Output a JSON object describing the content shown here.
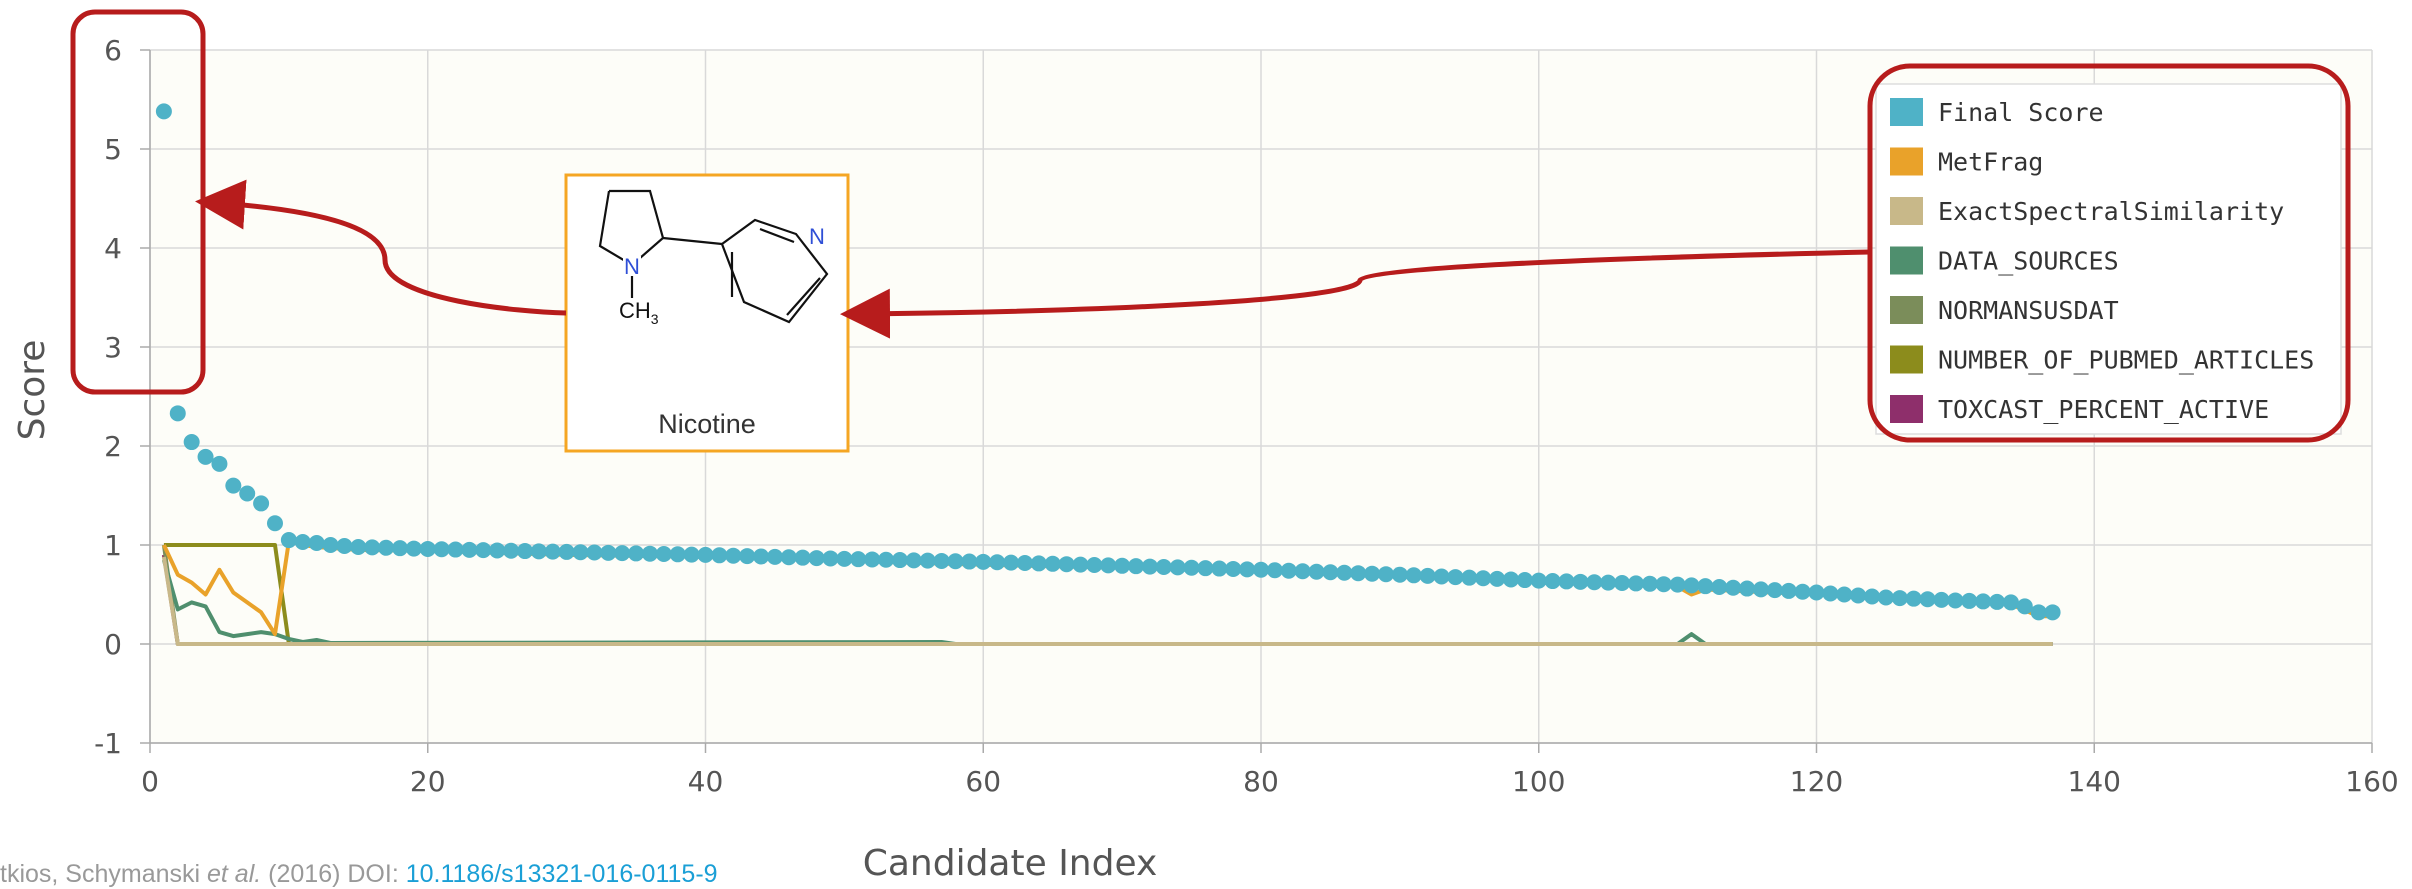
{
  "chart_data": {
    "type": "line",
    "title": "",
    "xlabel": "Candidate Index",
    "ylabel": "Score",
    "xlim": [
      0,
      160
    ],
    "ylim": [
      -1,
      6
    ],
    "x_ticks": [
      "0",
      "20",
      "40",
      "60",
      "80",
      "100",
      "120",
      "140",
      "160"
    ],
    "y_ticks": [
      "-1",
      "0",
      "1",
      "2",
      "3",
      "4",
      "5",
      "6"
    ],
    "grid": true,
    "legend_position": "top-right",
    "series": [
      {
        "name": "Final Score",
        "color": "#4fb2c7",
        "style": "markers",
        "points": [
          [
            1,
            5.38
          ],
          [
            2,
            2.33
          ],
          [
            3,
            2.04
          ],
          [
            4,
            1.89
          ],
          [
            5,
            1.82
          ],
          [
            6,
            1.6
          ],
          [
            7,
            1.52
          ],
          [
            8,
            1.42
          ],
          [
            9,
            1.22
          ],
          [
            10,
            1.05
          ],
          [
            11,
            1.03
          ],
          [
            12,
            1.02
          ],
          [
            13,
            1.0
          ],
          [
            14,
            0.99
          ],
          [
            15,
            0.98
          ],
          [
            20,
            0.96
          ],
          [
            30,
            0.93
          ],
          [
            40,
            0.9
          ],
          [
            50,
            0.86
          ],
          [
            60,
            0.83
          ],
          [
            70,
            0.79
          ],
          [
            80,
            0.75
          ],
          [
            90,
            0.7
          ],
          [
            100,
            0.64
          ],
          [
            110,
            0.6
          ],
          [
            115,
            0.56
          ],
          [
            120,
            0.52
          ],
          [
            125,
            0.47
          ],
          [
            130,
            0.44
          ],
          [
            134,
            0.42
          ],
          [
            135,
            0.38
          ],
          [
            136,
            0.32
          ],
          [
            137,
            0.32
          ]
        ]
      },
      {
        "name": "MetFrag",
        "color": "#e9a22a",
        "style": "line",
        "points": [
          [
            1,
            1.0
          ],
          [
            2,
            0.7
          ],
          [
            3,
            0.62
          ],
          [
            4,
            0.5
          ],
          [
            5,
            0.75
          ],
          [
            6,
            0.52
          ],
          [
            7,
            0.42
          ],
          [
            8,
            0.32
          ],
          [
            9,
            0.1
          ],
          [
            10,
            1.04
          ],
          [
            11,
            1.0
          ],
          [
            12,
            0.98
          ],
          [
            15,
            0.95
          ],
          [
            20,
            0.94
          ],
          [
            30,
            0.9
          ],
          [
            40,
            0.88
          ],
          [
            50,
            0.84
          ],
          [
            60,
            0.8
          ],
          [
            70,
            0.77
          ],
          [
            80,
            0.73
          ],
          [
            90,
            0.68
          ],
          [
            100,
            0.62
          ],
          [
            110,
            0.58
          ],
          [
            111,
            0.5
          ],
          [
            112,
            0.55
          ],
          [
            120,
            0.5
          ],
          [
            125,
            0.45
          ],
          [
            130,
            0.42
          ],
          [
            134,
            0.4
          ],
          [
            136,
            0.28
          ],
          [
            137,
            0.28
          ]
        ]
      },
      {
        "name": "ExactSpectralSimilarity",
        "color": "#c8b889",
        "style": "line",
        "points": [
          [
            1,
            0.88
          ],
          [
            2,
            0.0
          ],
          [
            137,
            0.0
          ]
        ]
      },
      {
        "name": "DATA_SOURCES",
        "color": "#4f8f6e",
        "style": "line",
        "points": [
          [
            1,
            0.85
          ],
          [
            2,
            0.35
          ],
          [
            3,
            0.42
          ],
          [
            4,
            0.38
          ],
          [
            5,
            0.12
          ],
          [
            6,
            0.08
          ],
          [
            7,
            0.1
          ],
          [
            8,
            0.12
          ],
          [
            9,
            0.1
          ],
          [
            10,
            0.05
          ],
          [
            11,
            0.02
          ],
          [
            12,
            0.04
          ],
          [
            13,
            0.01
          ],
          [
            57,
            0.02
          ],
          [
            58,
            0.0
          ],
          [
            110,
            0.0
          ],
          [
            111,
            0.1
          ],
          [
            112,
            0.0
          ],
          [
            137,
            0.0
          ]
        ]
      },
      {
        "name": "NORMANSUSDAT",
        "color": "#7b8d5a",
        "style": "line",
        "points": [
          [
            1,
            1.0
          ],
          [
            2,
            0.0
          ],
          [
            137,
            0.0
          ]
        ]
      },
      {
        "name": "NUMBER_OF_PUBMED_ARTICLES",
        "color": "#8c8c1c",
        "style": "line",
        "points": [
          [
            1,
            1.0
          ],
          [
            9,
            1.0
          ],
          [
            10,
            0.0
          ],
          [
            137,
            0.0
          ]
        ]
      },
      {
        "name": "TOXCAST_PERCENT_ACTIVE",
        "color": "#8e2f6b",
        "style": "line",
        "points": [
          [
            1,
            0.9
          ],
          [
            2,
            0.0
          ],
          [
            137,
            0.0
          ]
        ]
      }
    ],
    "annotations": [
      {
        "type": "highlight-box",
        "target": "y-axis top values (3 to 6)",
        "color": "#b71c1c"
      },
      {
        "type": "highlight-box",
        "target": "legend",
        "color": "#b71c1c"
      },
      {
        "type": "structure-inset",
        "label": "Nicotine",
        "atom_labels": [
          "N",
          "N",
          "CH3"
        ],
        "border_color": "#f5a623"
      }
    ]
  },
  "inset": {
    "name": "Nicotine",
    "atom_n_ring": "N",
    "atom_n_pyridine": "N",
    "methyl_main": "CH",
    "methyl_sub": "3"
  },
  "citation": {
    "prefix": "tkios, Schymanski ",
    "etal": "et al.",
    "middle": " (2016) DOI: ",
    "doi": "10.1186/s13321-016-0115-9"
  }
}
